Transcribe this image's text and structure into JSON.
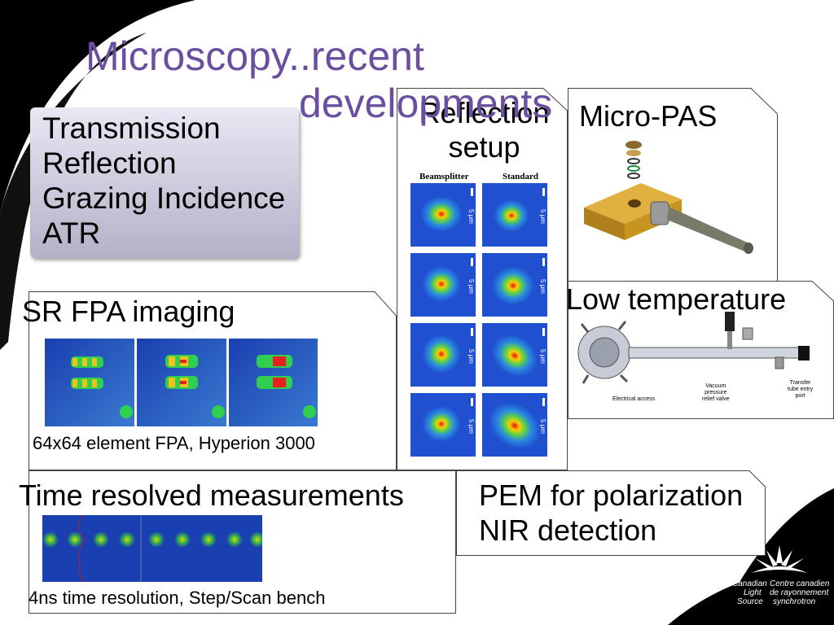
{
  "slide": {
    "title_line1": "Microscopy..recent",
    "title_line2": "developments"
  },
  "methods": {
    "items": [
      "Transmission",
      "Reflection",
      "Grazing Incidence",
      "ATR"
    ]
  },
  "reflection_panel": {
    "title_line1": "Reflection",
    "title_line2": "setup",
    "col1": "Beamsplitter",
    "col2": "Standard",
    "scale": "5 μm"
  },
  "micropas_panel": {
    "title": "Micro-PAS"
  },
  "lowtemp_panel": {
    "title": "Low temperature",
    "label_electrical": "Electrical access",
    "label_vacuum": "Vacuum\npressure\nrelief valve",
    "label_transfer": "Transfer\ntube entry\nport"
  },
  "fpa_panel": {
    "title": "SR FPA imaging",
    "caption": "64x64 element FPA, Hyperion 3000"
  },
  "time_panel": {
    "title": "Time resolved measurements",
    "caption": "4ns time resolution, Step/Scan bench"
  },
  "pem_panel": {
    "line1": "PEM for polarization",
    "line2": "NIR detection"
  },
  "logo": {
    "en1": "Canadian",
    "en2": "Light",
    "en3": "Source",
    "fr1": "Centre canadien",
    "fr2": "de rayonnement",
    "fr3": "synchrotron"
  },
  "colors": {
    "title": "#6a4fa0",
    "background_dark": "#000000",
    "accent": "#6a4fa0"
  }
}
